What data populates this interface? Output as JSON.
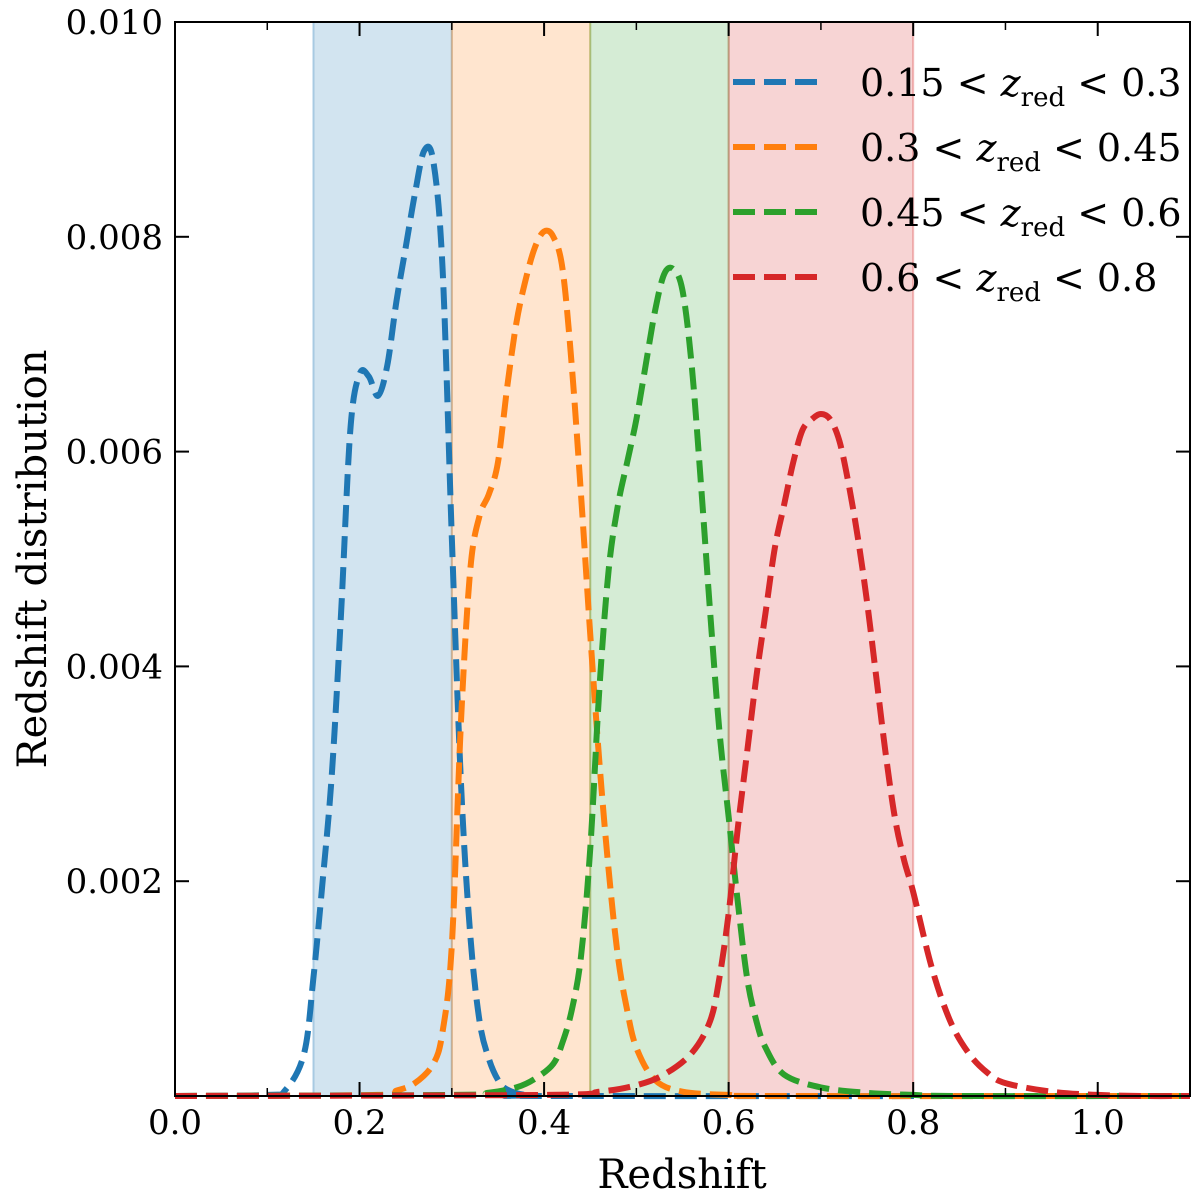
{
  "chart_data": {
    "type": "line",
    "title": "",
    "xlabel": "Redshift",
    "ylabel": "Redshift distribution",
    "xlim": [
      0.0,
      1.1
    ],
    "ylim": [
      0.0,
      0.01
    ],
    "xticks": [
      "0.0",
      "0.2",
      "0.4",
      "0.6",
      "0.8",
      "1.0"
    ],
    "yticks": [
      "0.002",
      "0.004",
      "0.006",
      "0.008",
      "0.010"
    ],
    "grid": false,
    "legend": "top-right",
    "bands": [
      {
        "x0": 0.15,
        "x1": 0.3,
        "color": "#1f77b4"
      },
      {
        "x0": 0.3,
        "x1": 0.45,
        "color": "#ff7f0e"
      },
      {
        "x0": 0.45,
        "x1": 0.6,
        "color": "#2ca02c"
      },
      {
        "x0": 0.6,
        "x1": 0.8,
        "color": "#d62728"
      }
    ],
    "series": [
      {
        "color": "#1f77b4",
        "legend": {
          "pre": "0.15 < ",
          "var": "z",
          "sub": "red",
          "post": " < 0.3"
        },
        "points": [
          [
            0.0,
            0
          ],
          [
            0.1,
            1e-05
          ],
          [
            0.12,
            6e-05
          ],
          [
            0.14,
            0.0004
          ],
          [
            0.15,
            0.0011
          ],
          [
            0.16,
            0.002
          ],
          [
            0.17,
            0.003
          ],
          [
            0.18,
            0.0045
          ],
          [
            0.19,
            0.0062
          ],
          [
            0.2,
            0.00672
          ],
          [
            0.21,
            0.0067
          ],
          [
            0.22,
            0.00652
          ],
          [
            0.23,
            0.0068
          ],
          [
            0.24,
            0.0074
          ],
          [
            0.25,
            0.0079
          ],
          [
            0.26,
            0.0084
          ],
          [
            0.27,
            0.0088
          ],
          [
            0.28,
            0.0087
          ],
          [
            0.29,
            0.0077
          ],
          [
            0.3,
            0.0052
          ],
          [
            0.31,
            0.0029
          ],
          [
            0.32,
            0.0015
          ],
          [
            0.33,
            0.0007
          ],
          [
            0.34,
            0.00035
          ],
          [
            0.35,
            0.00015
          ],
          [
            0.36,
            6e-05
          ],
          [
            0.38,
            1e-05
          ],
          [
            0.42,
            0
          ],
          [
            1.1,
            0
          ]
        ]
      },
      {
        "color": "#ff7f0e",
        "legend": {
          "pre": "0.3 < ",
          "var": "z",
          "sub": "red",
          "post": " < 0.45"
        },
        "points": [
          [
            0.0,
            0
          ],
          [
            0.22,
            1e-05
          ],
          [
            0.24,
            5e-05
          ],
          [
            0.26,
            0.00012
          ],
          [
            0.28,
            0.0003
          ],
          [
            0.29,
            0.0006
          ],
          [
            0.3,
            0.0014
          ],
          [
            0.31,
            0.0035
          ],
          [
            0.32,
            0.0049
          ],
          [
            0.33,
            0.0054
          ],
          [
            0.34,
            0.0056
          ],
          [
            0.35,
            0.0059
          ],
          [
            0.36,
            0.0066
          ],
          [
            0.37,
            0.0072
          ],
          [
            0.38,
            0.0076
          ],
          [
            0.39,
            0.0079
          ],
          [
            0.4,
            0.00805
          ],
          [
            0.41,
            0.008
          ],
          [
            0.42,
            0.0077
          ],
          [
            0.43,
            0.0068
          ],
          [
            0.44,
            0.0056
          ],
          [
            0.45,
            0.0043
          ],
          [
            0.46,
            0.0031
          ],
          [
            0.47,
            0.0021
          ],
          [
            0.48,
            0.0013
          ],
          [
            0.49,
            0.0008
          ],
          [
            0.5,
            0.00045
          ],
          [
            0.52,
            0.00015
          ],
          [
            0.55,
            4e-05
          ],
          [
            0.6,
            1e-05
          ],
          [
            0.65,
            0
          ],
          [
            1.1,
            0
          ]
        ]
      },
      {
        "color": "#2ca02c",
        "legend": {
          "pre": "0.45 < ",
          "var": "z",
          "sub": "red",
          "post": " < 0.6"
        },
        "points": [
          [
            0.0,
            0
          ],
          [
            0.3,
            1e-05
          ],
          [
            0.34,
            3e-05
          ],
          [
            0.37,
            8e-05
          ],
          [
            0.39,
            0.00016
          ],
          [
            0.41,
            0.0003
          ],
          [
            0.42,
            0.0005
          ],
          [
            0.43,
            0.0008
          ],
          [
            0.44,
            0.0013
          ],
          [
            0.45,
            0.0023
          ],
          [
            0.46,
            0.0038
          ],
          [
            0.47,
            0.0049
          ],
          [
            0.48,
            0.0055
          ],
          [
            0.49,
            0.0059
          ],
          [
            0.5,
            0.0063
          ],
          [
            0.51,
            0.0068
          ],
          [
            0.52,
            0.0073
          ],
          [
            0.53,
            0.00765
          ],
          [
            0.54,
            0.0077
          ],
          [
            0.55,
            0.0075
          ],
          [
            0.56,
            0.0068
          ],
          [
            0.57,
            0.0057
          ],
          [
            0.58,
            0.0045
          ],
          [
            0.59,
            0.0034
          ],
          [
            0.6,
            0.0026
          ],
          [
            0.61,
            0.0018
          ],
          [
            0.62,
            0.0011
          ],
          [
            0.63,
            0.0007
          ],
          [
            0.64,
            0.00045
          ],
          [
            0.66,
            0.0002
          ],
          [
            0.7,
            8e-05
          ],
          [
            0.75,
            3e-05
          ],
          [
            0.8,
            1e-05
          ],
          [
            0.85,
            0
          ],
          [
            1.1,
            0
          ]
        ]
      },
      {
        "color": "#d62728",
        "legend": {
          "pre": "0.6 < ",
          "var": "z",
          "sub": "red",
          "post": " < 0.8"
        },
        "points": [
          [
            0.0,
            0
          ],
          [
            0.4,
            1e-05
          ],
          [
            0.46,
            4e-05
          ],
          [
            0.5,
            0.0001
          ],
          [
            0.53,
            0.0002
          ],
          [
            0.56,
            0.0004
          ],
          [
            0.58,
            0.0007
          ],
          [
            0.59,
            0.0011
          ],
          [
            0.6,
            0.0017
          ],
          [
            0.61,
            0.0025
          ],
          [
            0.62,
            0.0032
          ],
          [
            0.63,
            0.0039
          ],
          [
            0.64,
            0.0045
          ],
          [
            0.65,
            0.0051
          ],
          [
            0.66,
            0.0055
          ],
          [
            0.67,
            0.0059
          ],
          [
            0.68,
            0.0062
          ],
          [
            0.69,
            0.0063
          ],
          [
            0.7,
            0.00635
          ],
          [
            0.71,
            0.0063
          ],
          [
            0.72,
            0.0061
          ],
          [
            0.73,
            0.0057
          ],
          [
            0.74,
            0.0052
          ],
          [
            0.75,
            0.0046
          ],
          [
            0.76,
            0.0039
          ],
          [
            0.77,
            0.0032
          ],
          [
            0.78,
            0.0026
          ],
          [
            0.79,
            0.0022
          ],
          [
            0.8,
            0.0019
          ],
          [
            0.82,
            0.0012
          ],
          [
            0.84,
            0.0007
          ],
          [
            0.86,
            0.0004
          ],
          [
            0.88,
            0.00022
          ],
          [
            0.9,
            0.00012
          ],
          [
            0.95,
            4e-05
          ],
          [
            1.0,
            1e-05
          ],
          [
            1.05,
            0
          ],
          [
            1.1,
            0
          ]
        ]
      }
    ]
  }
}
